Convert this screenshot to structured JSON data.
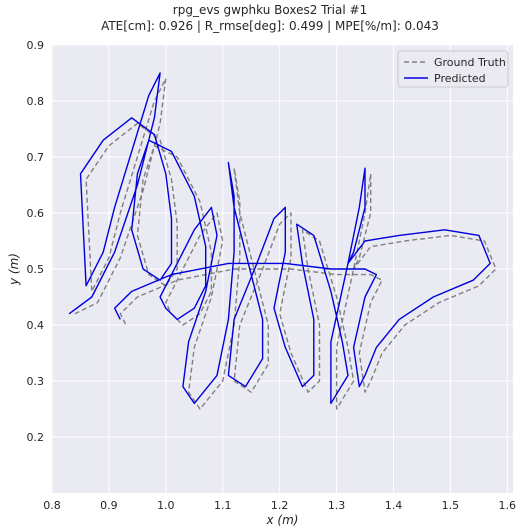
{
  "chart_data": {
    "type": "line",
    "title": "rpg_evs gwphku Boxes2 Trial #1",
    "subtitle": "ATE[cm]: 0.926 | R_rmse[deg]: 0.499 | MPE[%/m]: 0.043",
    "xlabel": "x (m)",
    "ylabel": "y (m)",
    "xlim": [
      0.8,
      1.61
    ],
    "ylim": [
      0.1,
      0.9
    ],
    "xticks": [
      "0.8",
      "0.9",
      "1.0",
      "1.1",
      "1.2",
      "1.3",
      "1.4",
      "1.5",
      "1.6"
    ],
    "yticks": [
      "0.2",
      "0.3",
      "0.4",
      "0.5",
      "0.6",
      "0.7",
      "0.8",
      "0.9"
    ],
    "grid": true,
    "legend_position": "top-right",
    "series": [
      {
        "name": "Ground Truth",
        "color": "#808080",
        "style": "dashed",
        "x": [
          0.84,
          0.88,
          0.92,
          0.96,
          0.99,
          1.0,
          0.98,
          0.95,
          0.92,
          0.9,
          0.87,
          0.86,
          0.9,
          0.95,
          0.99,
          1.01,
          1.02,
          1.02,
          1.0,
          0.97,
          0.95,
          0.96,
          0.98,
          1.02,
          1.06,
          1.08,
          1.08,
          1.06,
          1.03,
          1.01,
          1.0,
          1.02,
          1.06,
          1.09,
          1.1,
          1.08,
          1.05,
          1.04,
          1.06,
          1.1,
          1.12,
          1.13,
          1.13,
          1.12,
          1.13,
          1.16,
          1.18,
          1.18,
          1.15,
          1.12,
          1.13,
          1.17,
          1.2,
          1.22,
          1.22,
          1.2,
          1.22,
          1.25,
          1.27,
          1.27,
          1.25,
          1.24,
          1.27,
          1.3,
          1.32,
          1.33,
          1.3,
          1.3,
          1.33,
          1.35,
          1.36,
          1.36,
          1.34,
          1.33,
          1.36,
          1.42,
          1.5,
          1.56,
          1.58,
          1.55,
          1.48,
          1.42,
          1.38,
          1.36,
          1.35,
          1.34,
          1.36,
          1.38,
          1.36,
          1.3,
          1.22,
          1.12,
          1.02,
          0.95,
          0.92,
          0.93
        ],
        "y": [
          0.42,
          0.44,
          0.52,
          0.64,
          0.76,
          0.84,
          0.8,
          0.7,
          0.6,
          0.52,
          0.46,
          0.66,
          0.72,
          0.76,
          0.73,
          0.66,
          0.58,
          0.5,
          0.47,
          0.49,
          0.56,
          0.66,
          0.72,
          0.7,
          0.62,
          0.53,
          0.46,
          0.42,
          0.4,
          0.42,
          0.44,
          0.48,
          0.56,
          0.6,
          0.55,
          0.45,
          0.36,
          0.28,
          0.25,
          0.3,
          0.4,
          0.52,
          0.62,
          0.68,
          0.6,
          0.48,
          0.4,
          0.33,
          0.28,
          0.3,
          0.4,
          0.5,
          0.58,
          0.6,
          0.52,
          0.42,
          0.35,
          0.28,
          0.3,
          0.4,
          0.5,
          0.57,
          0.55,
          0.45,
          0.36,
          0.3,
          0.25,
          0.36,
          0.5,
          0.6,
          0.67,
          0.6,
          0.52,
          0.5,
          0.54,
          0.55,
          0.56,
          0.55,
          0.5,
          0.47,
          0.44,
          0.4,
          0.35,
          0.3,
          0.28,
          0.35,
          0.44,
          0.48,
          0.49,
          0.49,
          0.5,
          0.5,
          0.48,
          0.45,
          0.42,
          0.4
        ]
      },
      {
        "name": "Predicted",
        "color": "#0000dd",
        "style": "solid",
        "x": [
          0.83,
          0.87,
          0.91,
          0.95,
          0.98,
          0.99,
          0.97,
          0.94,
          0.91,
          0.89,
          0.86,
          0.85,
          0.89,
          0.94,
          0.98,
          1.0,
          1.01,
          1.01,
          0.99,
          0.96,
          0.94,
          0.95,
          0.97,
          1.01,
          1.05,
          1.07,
          1.07,
          1.05,
          1.02,
          1.0,
          0.99,
          1.01,
          1.05,
          1.08,
          1.09,
          1.07,
          1.04,
          1.03,
          1.05,
          1.09,
          1.11,
          1.12,
          1.12,
          1.11,
          1.12,
          1.15,
          1.17,
          1.17,
          1.14,
          1.11,
          1.12,
          1.16,
          1.19,
          1.21,
          1.21,
          1.19,
          1.21,
          1.24,
          1.26,
          1.26,
          1.24,
          1.23,
          1.26,
          1.29,
          1.31,
          1.32,
          1.29,
          1.29,
          1.32,
          1.34,
          1.35,
          1.35,
          1.33,
          1.32,
          1.35,
          1.41,
          1.49,
          1.55,
          1.57,
          1.54,
          1.47,
          1.41,
          1.37,
          1.35,
          1.34,
          1.33,
          1.35,
          1.37,
          1.35,
          1.29,
          1.21,
          1.11,
          1.01,
          0.94,
          0.91,
          0.92
        ],
        "y": [
          0.42,
          0.45,
          0.53,
          0.65,
          0.77,
          0.85,
          0.81,
          0.71,
          0.61,
          0.53,
          0.47,
          0.67,
          0.73,
          0.77,
          0.74,
          0.67,
          0.59,
          0.51,
          0.48,
          0.5,
          0.57,
          0.67,
          0.73,
          0.71,
          0.63,
          0.54,
          0.47,
          0.43,
          0.41,
          0.43,
          0.45,
          0.49,
          0.57,
          0.61,
          0.56,
          0.46,
          0.37,
          0.29,
          0.26,
          0.31,
          0.41,
          0.53,
          0.63,
          0.69,
          0.61,
          0.49,
          0.41,
          0.34,
          0.29,
          0.31,
          0.41,
          0.51,
          0.59,
          0.61,
          0.53,
          0.43,
          0.36,
          0.29,
          0.31,
          0.41,
          0.51,
          0.58,
          0.56,
          0.46,
          0.37,
          0.31,
          0.26,
          0.37,
          0.51,
          0.61,
          0.68,
          0.61,
          0.53,
          0.51,
          0.55,
          0.56,
          0.57,
          0.56,
          0.51,
          0.48,
          0.45,
          0.41,
          0.36,
          0.31,
          0.29,
          0.36,
          0.45,
          0.49,
          0.5,
          0.5,
          0.51,
          0.51,
          0.49,
          0.46,
          0.43,
          0.41
        ]
      }
    ]
  }
}
